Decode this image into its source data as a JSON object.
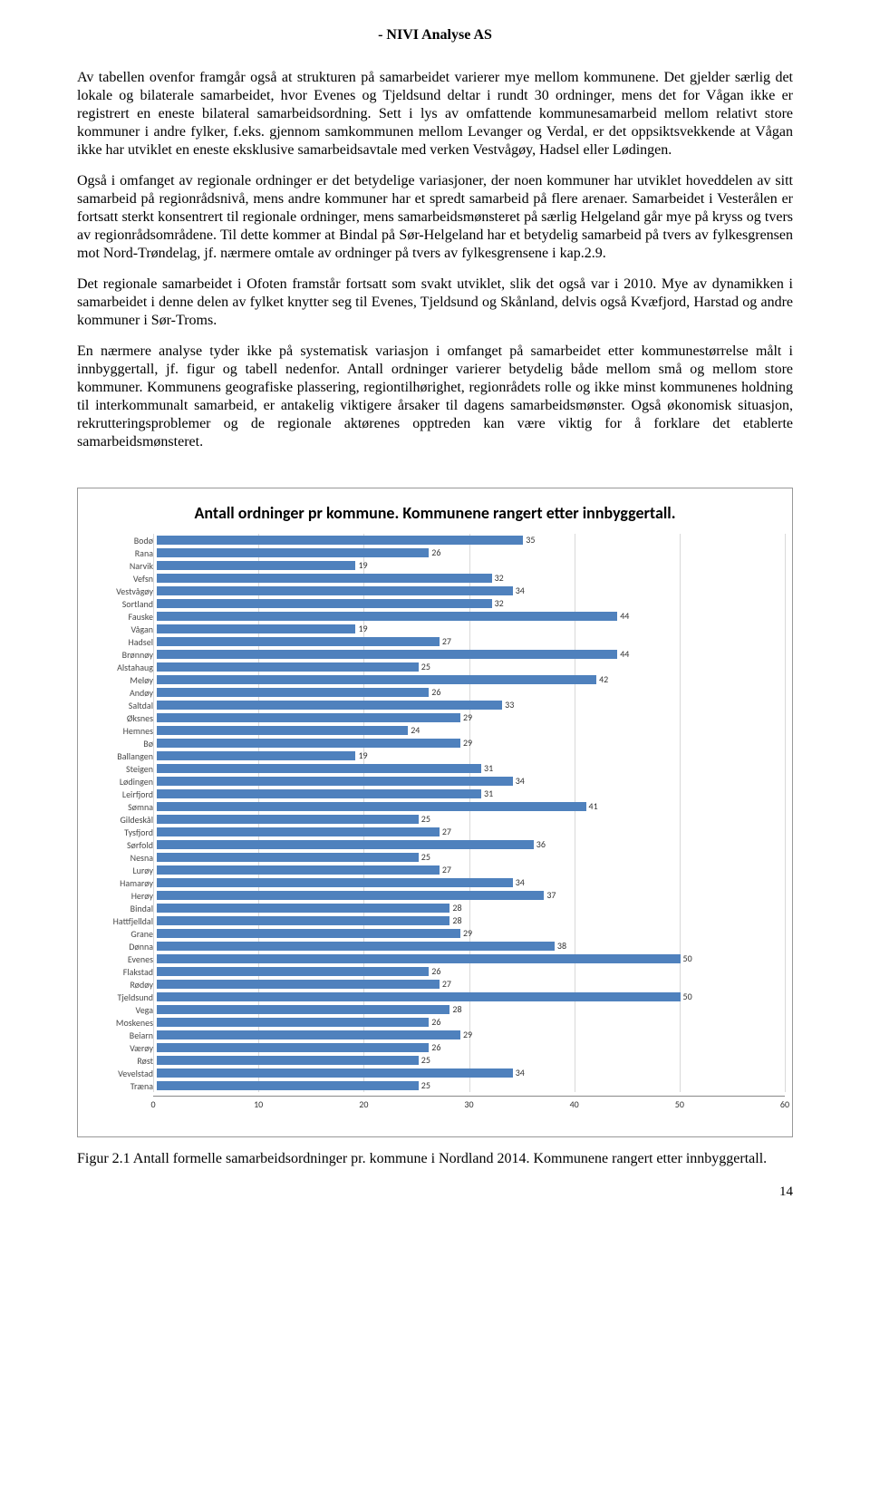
{
  "header": "- NIVI Analyse AS",
  "paragraphs": [
    "Av tabellen ovenfor framgår også at strukturen på samarbeidet varierer mye mellom kommunene. Det gjelder særlig det lokale og bilaterale samarbeidet, hvor Evenes og Tjeldsund deltar i rundt 30 ordninger, mens det for Vågan ikke er registrert en eneste bilateral samarbeidsordning. Sett i lys av omfattende kommunesamarbeid mellom relativt store kommuner i andre fylker, f.eks. gjennom samkommunen mellom Levanger og Verdal, er det oppsiktsvekkende at Vågan ikke har utviklet en eneste eksklusive samarbeidsavtale med verken Vestvågøy, Hadsel eller Lødingen.",
    "Også i omfanget av regionale ordninger er det betydelige variasjoner, der noen kommuner har utviklet hoveddelen av sitt samarbeid på regionrådsnivå, mens andre kommuner har et spredt samarbeid på flere arenaer. Samarbeidet i Vesterålen er fortsatt sterkt konsentrert til regionale ordninger, mens samarbeidsmønsteret på særlig Helgeland går mye på kryss og tvers av regionrådsområdene. Til dette kommer at Bindal på Sør-Helgeland har et betydelig samarbeid på tvers av fylkesgrensen mot Nord-Trøndelag, jf. nærmere omtale av ordninger på tvers av fylkesgrensene i kap.2.9.",
    "Det regionale samarbeidet i Ofoten framstår fortsatt som svakt utviklet, slik det også var i 2010. Mye av dynamikken i samarbeidet i denne delen av fylket knytter seg til Evenes, Tjeldsund og Skånland, delvis også Kvæfjord, Harstad og andre kommuner i Sør-Troms.",
    "En nærmere analyse tyder ikke på systematisk variasjon i omfanget på samarbeidet etter kommunestørrelse målt i innbyggertall, jf. figur og tabell nedenfor. Antall ordninger varierer betydelig både mellom små og mellom store kommuner. Kommunens geografiske plassering, regiontilhørighet, regionrådets rolle og ikke minst kommunenes holdning til interkommunalt samarbeid, er antakelig viktigere årsaker til dagens samarbeidsmønster. Også økonomisk situasjon, rekrutteringsproblemer og de regionale aktørenes opptreden kan være viktig for å forklare det etablerte samarbeidsmønsteret."
  ],
  "chart": {
    "title": "Antall ordninger pr kommune. Kommunene rangert etter innbyggertall.",
    "xmin": 0,
    "xmax": 60,
    "xstep": 10,
    "bar_color": "#4f81bd",
    "grid_color": "#d9d9d9",
    "data": [
      {
        "label": "Bodø",
        "value": 35
      },
      {
        "label": "Rana",
        "value": 26
      },
      {
        "label": "Narvik",
        "value": 19
      },
      {
        "label": "Vefsn",
        "value": 32
      },
      {
        "label": "Vestvågøy",
        "value": 34
      },
      {
        "label": "Sortland",
        "value": 32
      },
      {
        "label": "Fauske",
        "value": 44
      },
      {
        "label": "Vågan",
        "value": 19
      },
      {
        "label": "Hadsel",
        "value": 27
      },
      {
        "label": "Brønnøy",
        "value": 44
      },
      {
        "label": "Alstahaug",
        "value": 25
      },
      {
        "label": "Meløy",
        "value": 42
      },
      {
        "label": "Andøy",
        "value": 26
      },
      {
        "label": "Saltdal",
        "value": 33
      },
      {
        "label": "Øksnes",
        "value": 29
      },
      {
        "label": "Hemnes",
        "value": 24
      },
      {
        "label": "Bø",
        "value": 29
      },
      {
        "label": "Ballangen",
        "value": 19
      },
      {
        "label": "Steigen",
        "value": 31
      },
      {
        "label": "Lødingen",
        "value": 34
      },
      {
        "label": "Leirfjord",
        "value": 31
      },
      {
        "label": "Sømna",
        "value": 41
      },
      {
        "label": "Gildeskål",
        "value": 25
      },
      {
        "label": "Tysfjord",
        "value": 27
      },
      {
        "label": "Sørfold",
        "value": 36
      },
      {
        "label": "Nesna",
        "value": 25
      },
      {
        "label": "Lurøy",
        "value": 27
      },
      {
        "label": "Hamarøy",
        "value": 34
      },
      {
        "label": "Herøy",
        "value": 37
      },
      {
        "label": "Bindal",
        "value": 28
      },
      {
        "label": "Hattfjelldal",
        "value": 28
      },
      {
        "label": "Grane",
        "value": 29
      },
      {
        "label": "Dønna",
        "value": 38
      },
      {
        "label": "Evenes",
        "value": 50
      },
      {
        "label": "Flakstad",
        "value": 26
      },
      {
        "label": "Rødøy",
        "value": 27
      },
      {
        "label": "Tjeldsund",
        "value": 50
      },
      {
        "label": "Vega",
        "value": 28
      },
      {
        "label": "Moskenes",
        "value": 26
      },
      {
        "label": "Beiarn",
        "value": 29
      },
      {
        "label": "Værøy",
        "value": 26
      },
      {
        "label": "Røst",
        "value": 25
      },
      {
        "label": "Vevelstad",
        "value": 34
      },
      {
        "label": "Træna",
        "value": 25
      }
    ]
  },
  "caption": "Figur 2.1 Antall formelle samarbeidsordninger pr. kommune i Nordland 2014. Kommunene rangert etter innbyggertall.",
  "page_number": "14"
}
